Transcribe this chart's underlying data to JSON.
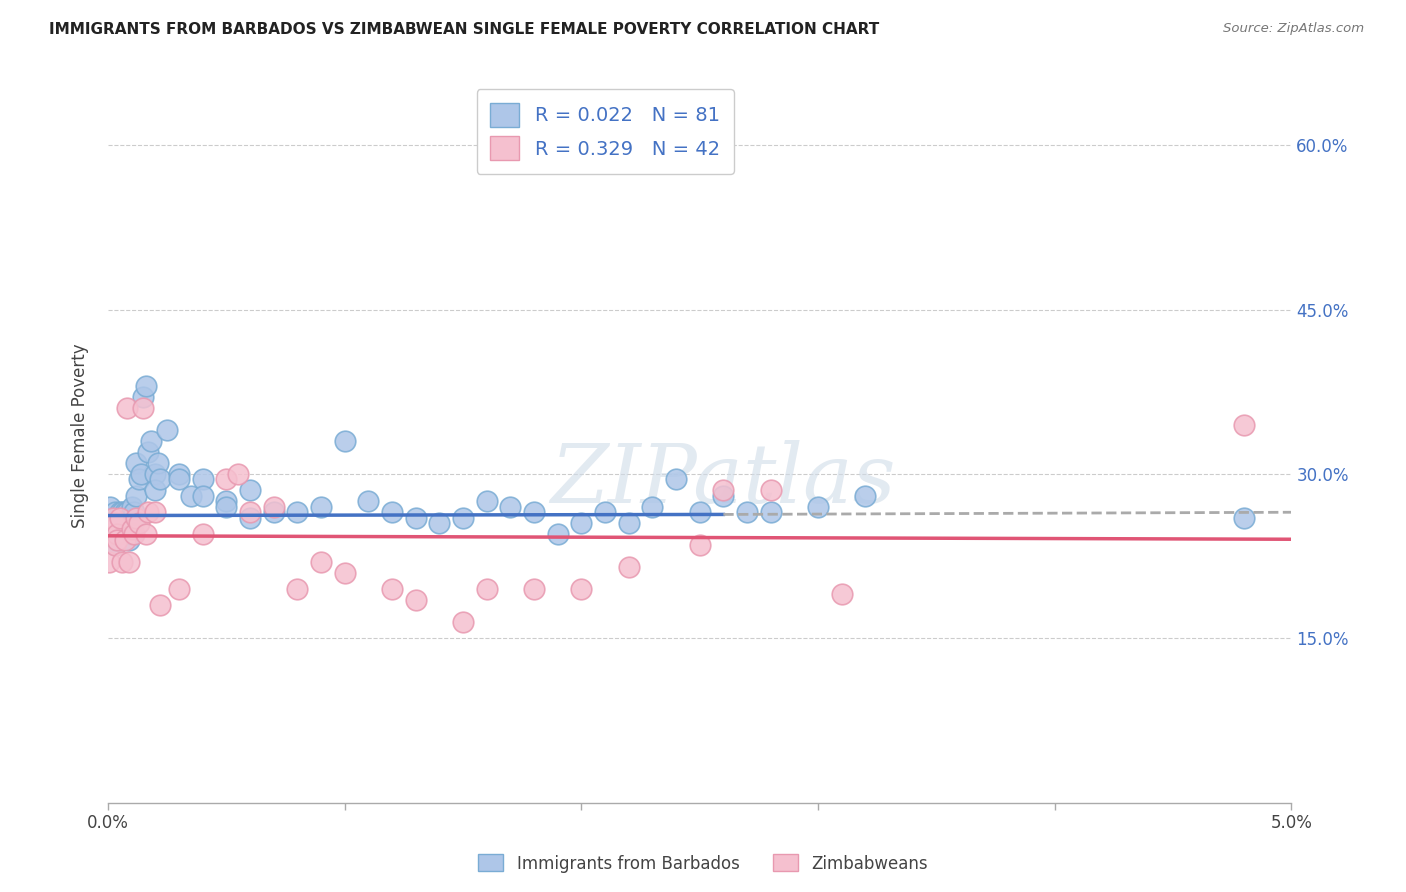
{
  "title": "IMMIGRANTS FROM BARBADOS VS ZIMBABWEAN SINGLE FEMALE POVERTY CORRELATION CHART",
  "source": "Source: ZipAtlas.com",
  "ylabel": "Single Female Poverty",
  "legend_label_1": "Immigrants from Barbados",
  "legend_label_2": "Zimbabweans",
  "watermark_text": "ZIPatlas",
  "background_color": "#ffffff",
  "grid_color": "#cccccc",
  "barbados_R": 0.022,
  "barbados_N": 81,
  "zimbabwe_R": 0.329,
  "zimbabwe_N": 42,
  "barbados_color": "#aec6e8",
  "barbados_edge_color": "#7aacd4",
  "barbados_line_color": "#4472c4",
  "barbados_line_dashed_color": "#aaaaaa",
  "zimbabwe_color": "#f5c0cf",
  "zimbabwe_edge_color": "#e899b0",
  "zimbabwe_line_color": "#e05575",
  "x_min": 0.0,
  "x_max": 0.05,
  "y_min": 0.0,
  "y_max": 0.67,
  "y_ticks": [
    0.15,
    0.3,
    0.45,
    0.6
  ],
  "barbados_line_end_x": 0.026,
  "barbados_x": [
    5e-05,
    0.0001,
    0.0001,
    0.0001,
    0.0002,
    0.0002,
    0.0002,
    0.0003,
    0.0003,
    0.0003,
    0.0003,
    0.0004,
    0.0004,
    0.0004,
    0.0004,
    0.0005,
    0.0005,
    0.0005,
    0.0005,
    0.0006,
    0.0006,
    0.0006,
    0.0007,
    0.0007,
    0.0007,
    0.0008,
    0.0008,
    0.0008,
    0.0009,
    0.0009,
    0.001,
    0.001,
    0.001,
    0.0011,
    0.0012,
    0.0012,
    0.0013,
    0.0014,
    0.0015,
    0.0016,
    0.0017,
    0.0018,
    0.002,
    0.002,
    0.0021,
    0.0022,
    0.0025,
    0.003,
    0.003,
    0.0035,
    0.004,
    0.004,
    0.005,
    0.005,
    0.006,
    0.006,
    0.007,
    0.008,
    0.009,
    0.01,
    0.011,
    0.012,
    0.013,
    0.014,
    0.015,
    0.016,
    0.017,
    0.018,
    0.019,
    0.02,
    0.021,
    0.022,
    0.023,
    0.024,
    0.025,
    0.026,
    0.027,
    0.028,
    0.03,
    0.032,
    0.048
  ],
  "barbados_y": [
    0.26,
    0.245,
    0.255,
    0.27,
    0.24,
    0.255,
    0.26,
    0.235,
    0.25,
    0.26,
    0.265,
    0.24,
    0.245,
    0.255,
    0.26,
    0.24,
    0.25,
    0.26,
    0.265,
    0.24,
    0.255,
    0.265,
    0.245,
    0.255,
    0.265,
    0.245,
    0.255,
    0.265,
    0.24,
    0.26,
    0.245,
    0.255,
    0.27,
    0.265,
    0.28,
    0.31,
    0.295,
    0.3,
    0.37,
    0.38,
    0.32,
    0.33,
    0.3,
    0.285,
    0.31,
    0.295,
    0.34,
    0.3,
    0.295,
    0.28,
    0.295,
    0.28,
    0.275,
    0.27,
    0.285,
    0.26,
    0.265,
    0.265,
    0.27,
    0.33,
    0.275,
    0.265,
    0.26,
    0.255,
    0.26,
    0.275,
    0.27,
    0.265,
    0.245,
    0.255,
    0.265,
    0.255,
    0.27,
    0.295,
    0.265,
    0.28,
    0.265,
    0.265,
    0.27,
    0.28,
    0.26
  ],
  "zimbabwe_x": [
    5e-05,
    0.0001,
    0.0002,
    0.0003,
    0.0003,
    0.0004,
    0.0004,
    0.0005,
    0.0006,
    0.0007,
    0.0008,
    0.0009,
    0.001,
    0.0011,
    0.0012,
    0.0013,
    0.0015,
    0.0016,
    0.0017,
    0.002,
    0.0022,
    0.003,
    0.004,
    0.005,
    0.0055,
    0.006,
    0.007,
    0.008,
    0.009,
    0.01,
    0.012,
    0.013,
    0.015,
    0.016,
    0.018,
    0.02,
    0.022,
    0.025,
    0.026,
    0.028,
    0.031,
    0.048
  ],
  "zimbabwe_y": [
    0.22,
    0.245,
    0.26,
    0.235,
    0.255,
    0.245,
    0.24,
    0.26,
    0.22,
    0.24,
    0.36,
    0.22,
    0.25,
    0.245,
    0.26,
    0.255,
    0.36,
    0.245,
    0.265,
    0.265,
    0.18,
    0.195,
    0.245,
    0.295,
    0.3,
    0.265,
    0.27,
    0.195,
    0.22,
    0.21,
    0.195,
    0.185,
    0.165,
    0.195,
    0.195,
    0.195,
    0.215,
    0.235,
    0.285,
    0.285,
    0.19,
    0.345
  ]
}
